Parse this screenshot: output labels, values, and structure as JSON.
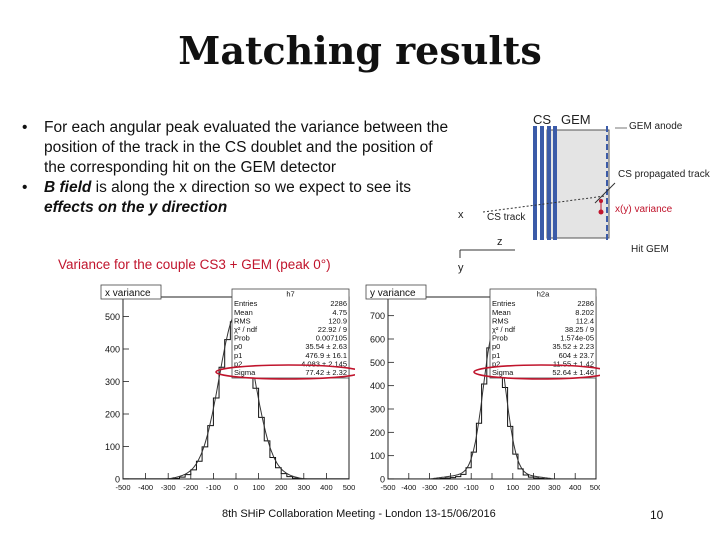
{
  "title": "Matching results",
  "bullets": [
    {
      "text": "For each angular peak evaluated the variance between the position of the track in the CS doublet and the position of the corresponding hit on the GEM detector"
    },
    {
      "emph1": "B field",
      "mid": " is along the x direction so we expect to see its ",
      "emph2": "effects on the y direction"
    }
  ],
  "caption": "Variance for the couple CS3 + GEM (peak 0°)",
  "diagram": {
    "label_cs": "CS",
    "label_gem": "GEM",
    "label_gem_anode": "GEM anode",
    "label_cs_propagated": "CS propagated track",
    "label_variance": "x(y) variance",
    "label_cs_track": "CS track",
    "label_hit_gem": "Hit GEM",
    "axis_x": "x",
    "axis_z": "z",
    "axis_y": "y"
  },
  "chart_data": [
    {
      "type": "bar",
      "title": "x variance",
      "histname": "h7",
      "stats": [
        [
          "Entries",
          "2286"
        ],
        [
          "Mean",
          "4.75"
        ],
        [
          "RMS",
          "120.9"
        ],
        [
          "χ² / ndf",
          "22.92 / 9"
        ],
        [
          "Prob",
          "0.007105"
        ],
        [
          "p0",
          "35.54 ± 2.63"
        ],
        [
          "p1",
          "476.9 ± 16.1"
        ],
        [
          "p2",
          "4.083 ± 2.145"
        ],
        [
          "Sigma",
          "77.42 ± 2.32"
        ]
      ],
      "ylim": [
        0,
        560
      ],
      "yticks": [
        0,
        100,
        200,
        300,
        400,
        500
      ],
      "xlim": [
        -500,
        500
      ],
      "xticks": [
        "-500",
        "-400",
        "-300",
        "-200",
        "-100",
        "0",
        "100",
        "200",
        "300",
        "400",
        "500"
      ],
      "gauss": {
        "const": 476.9,
        "mean": 4.083,
        "sigma": 77.42,
        "bg": 35.54
      }
    },
    {
      "type": "bar",
      "title": "y variance",
      "histname": "h2a",
      "stats": [
        [
          "Entries",
          "2286"
        ],
        [
          "Mean",
          "8.202"
        ],
        [
          "RMS",
          "112.4"
        ],
        [
          "χ² / ndf",
          "38.25 / 9"
        ],
        [
          "Prob",
          "1.574e-05"
        ],
        [
          "p0",
          "35.52 ± 2.23"
        ],
        [
          "p1",
          "604 ± 23.7"
        ],
        [
          "p2",
          "11.55 ± 1.42"
        ],
        [
          "Sigma",
          "52.64 ± 1.46"
        ]
      ],
      "ylim": [
        0,
        780
      ],
      "yticks": [
        0,
        100,
        200,
        300,
        400,
        500,
        600,
        700
      ],
      "xlim": [
        -500,
        500
      ],
      "xticks": [
        "-500",
        "-400",
        "-300",
        "-200",
        "-100",
        "0",
        "100",
        "200",
        "300",
        "400",
        "500"
      ],
      "gauss": {
        "const": 604,
        "mean": 11.55,
        "sigma": 52.64,
        "bg": 35.52
      }
    }
  ],
  "footer": "8th SHiP Collaboration Meeting - London 13-15/06/2016",
  "page_number": "10",
  "colors": {
    "caption": "#c0142c",
    "highlight": "#c0142c",
    "plane": "#3b5ba8"
  }
}
